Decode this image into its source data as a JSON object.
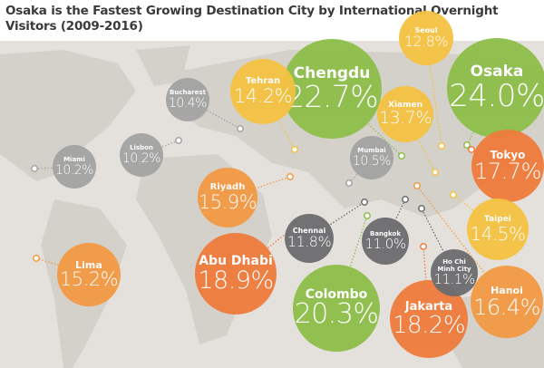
{
  "title": "Osaka is the Fastest Growing Destination City by International Overnight Visitors (2009-2016)",
  "colors": {
    "green": "#8dbf4a",
    "yellow": "#f5c242",
    "orange_dark": "#ef7b3c",
    "orange_light": "#f39a45",
    "gray_light": "#a3a3a3",
    "gray_dark": "#6c6d70",
    "land": "#d6d2cc",
    "sea": "#e4e1dc"
  },
  "cities": [
    {
      "name": "Osaka",
      "value": "24.0%",
      "color": "green"
    },
    {
      "name": "Chengdu",
      "value": "22.7%",
      "color": "green"
    },
    {
      "name": "Colombo",
      "value": "20.3%",
      "color": "green"
    },
    {
      "name": "Abu Dhabi",
      "value": "18.9%",
      "color": "orange_dark"
    },
    {
      "name": "Jakarta",
      "value": "18.2%",
      "color": "orange_dark"
    },
    {
      "name": "Tokyo",
      "value": "17.7%",
      "color": "orange_dark"
    },
    {
      "name": "Hanoi",
      "value": "16.4%",
      "color": "orange_light"
    },
    {
      "name": "Riyadh",
      "value": "15.9%",
      "color": "orange_light"
    },
    {
      "name": "Lima",
      "value": "15.2%",
      "color": "orange_light"
    },
    {
      "name": "Taipei",
      "value": "14.5%",
      "color": "yellow"
    },
    {
      "name": "Tehran",
      "value": "14.2%",
      "color": "yellow"
    },
    {
      "name": "Xiamen",
      "value": "13.7%",
      "color": "yellow"
    },
    {
      "name": "Seoul",
      "value": "12.8%",
      "color": "yellow"
    },
    {
      "name": "Chennai",
      "value": "11.8%",
      "color": "gray_dark"
    },
    {
      "name": "Ho Chi Minh City",
      "value": "11.1%",
      "color": "gray_dark"
    },
    {
      "name": "Bangkok",
      "value": "11.0%",
      "color": "gray_dark"
    },
    {
      "name": "Mumbai",
      "value": "10.5%",
      "color": "gray_light"
    },
    {
      "name": "Bucharest",
      "value": "10.4%",
      "color": "gray_light"
    },
    {
      "name": "Lisbon",
      "value": "10.2%",
      "color": "gray_light"
    },
    {
      "name": "Miami",
      "value": "10.2%",
      "color": "gray_light"
    }
  ]
}
